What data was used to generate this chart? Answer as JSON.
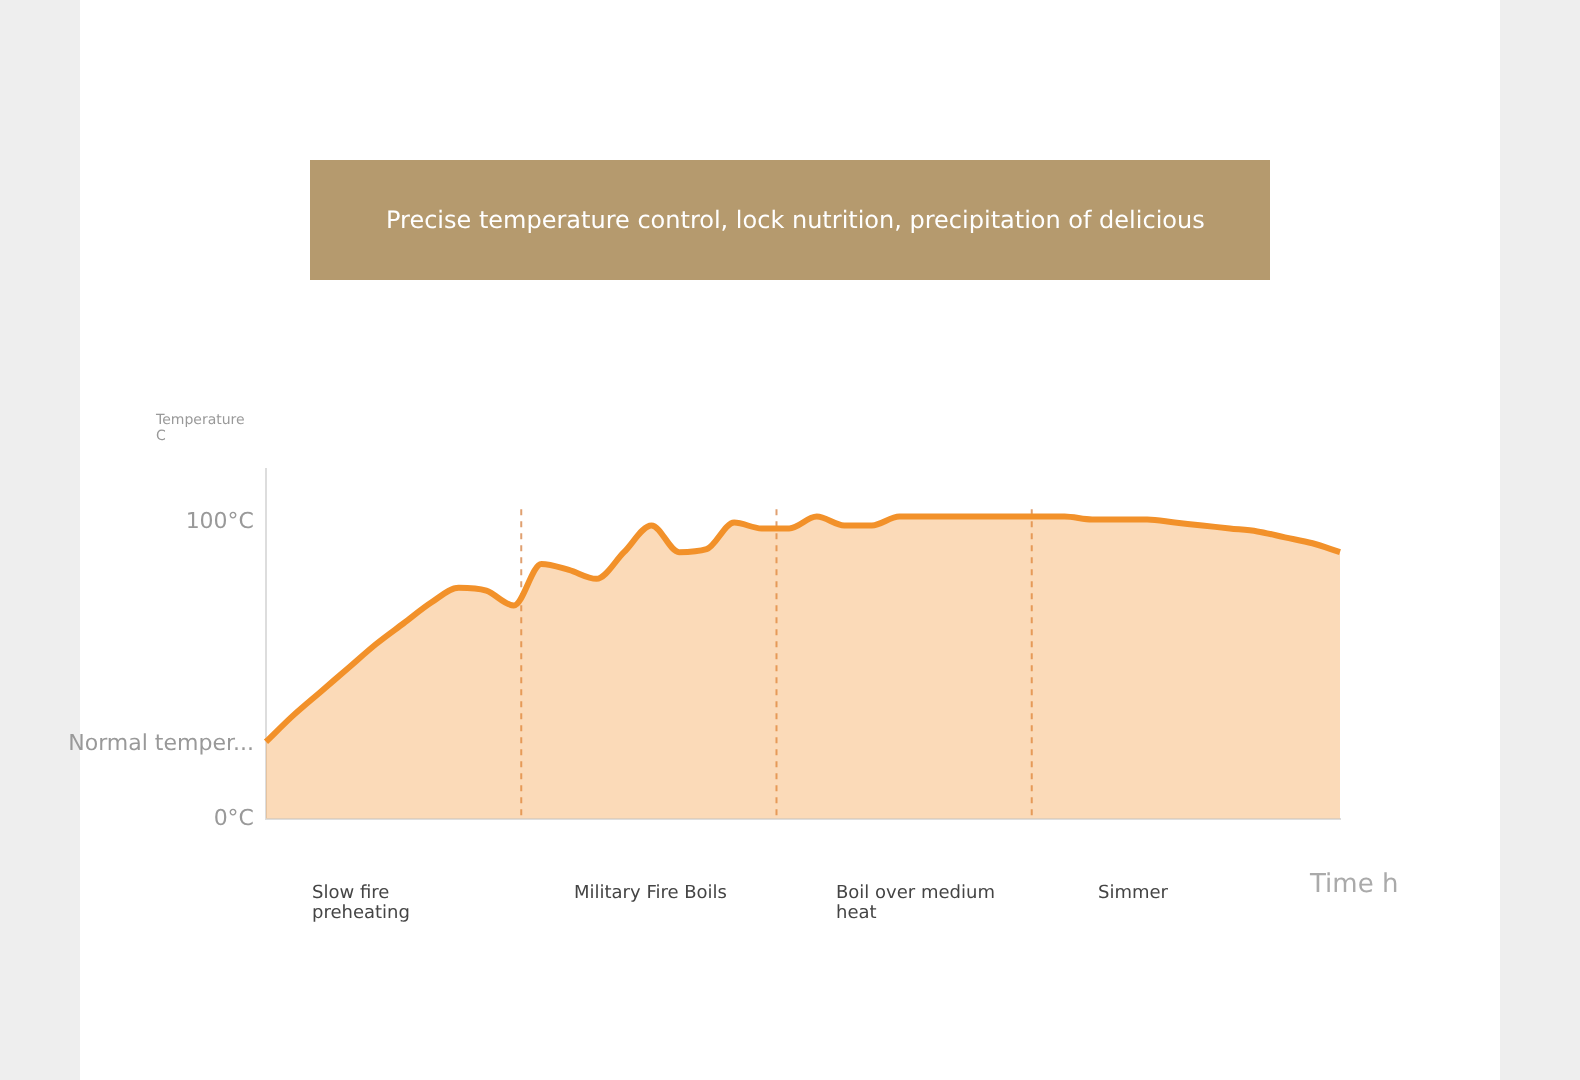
{
  "chart_data": {
    "type": "area",
    "title": "Precise temperature control, lock nutrition, precipitation of delicious",
    "xlabel": "Time h",
    "ylabel": "Temperature C",
    "categories": [
      null,
      null,
      null,
      null,
      null,
      null,
      null,
      null,
      null,
      null,
      null,
      null,
      null,
      null,
      null,
      null,
      null,
      null,
      null,
      null,
      null,
      null,
      null,
      null,
      null,
      null,
      null,
      null,
      null,
      null,
      null,
      null,
      null,
      null,
      null,
      null,
      null,
      null,
      null,
      null
    ],
    "series": [
      {
        "color": "#f2912a",
        "values": [
          26,
          35,
          43,
          51,
          59,
          66,
          73,
          78,
          77,
          72,
          86,
          84,
          81,
          90,
          99,
          90,
          91,
          100,
          98,
          98,
          102,
          99,
          99,
          102,
          102,
          102,
          102,
          102,
          102,
          102,
          101,
          101,
          101,
          100,
          99,
          98,
          97,
          95,
          93,
          90
        ]
      }
    ],
    "ylim": [
      0,
      118
    ],
    "yticks": [
      {
        "value": 0,
        "label": "0°C"
      },
      {
        "value": 25,
        "label": "Normal temper..."
      },
      {
        "value": 100,
        "label": "100°C"
      }
    ],
    "annotations": [
      "Slow fire preheating",
      "Military Fire Boils",
      "Boil over medium heat",
      "Simmer"
    ],
    "grid": false,
    "legend": false
  }
}
